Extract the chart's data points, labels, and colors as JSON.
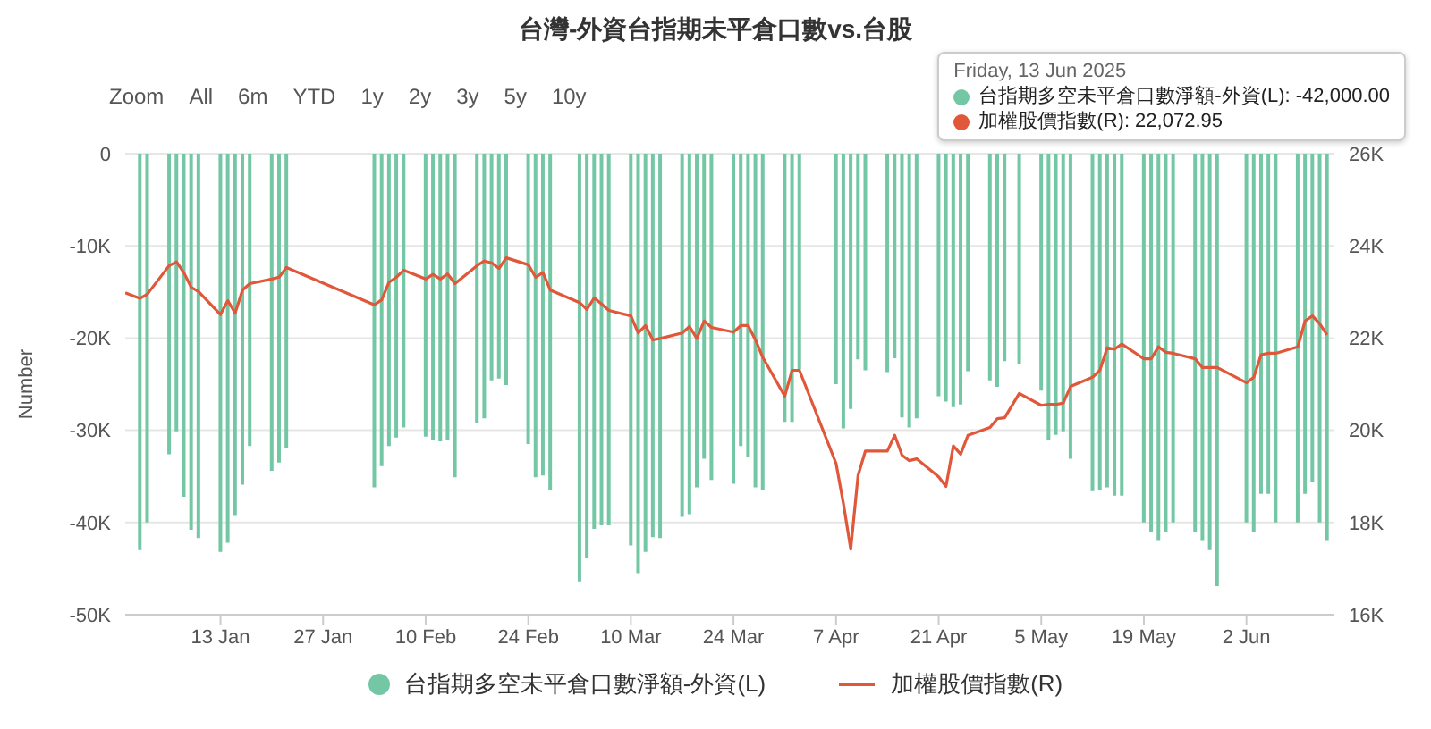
{
  "chart_data": {
    "type": "bar",
    "title": "台灣-外資台指期未平倉口數vs.台股",
    "ylabel": "Number",
    "x": [
      "2024-12-31",
      "2025-01-02",
      "2025-01-03",
      "2025-01-06",
      "2025-01-07",
      "2025-01-08",
      "2025-01-09",
      "2025-01-10",
      "2025-01-13",
      "2025-01-14",
      "2025-01-15",
      "2025-01-16",
      "2025-01-17",
      "2025-01-20",
      "2025-01-21",
      "2025-01-22",
      "2025-02-03",
      "2025-02-04",
      "2025-02-05",
      "2025-02-06",
      "2025-02-07",
      "2025-02-10",
      "2025-02-11",
      "2025-02-12",
      "2025-02-13",
      "2025-02-14",
      "2025-02-17",
      "2025-02-18",
      "2025-02-19",
      "2025-02-20",
      "2025-02-21",
      "2025-02-24",
      "2025-02-25",
      "2025-02-26",
      "2025-02-27",
      "2025-03-03",
      "2025-03-04",
      "2025-03-05",
      "2025-03-06",
      "2025-03-07",
      "2025-03-10",
      "2025-03-11",
      "2025-03-12",
      "2025-03-13",
      "2025-03-14",
      "2025-03-17",
      "2025-03-18",
      "2025-03-19",
      "2025-03-20",
      "2025-03-21",
      "2025-03-24",
      "2025-03-25",
      "2025-03-26",
      "2025-03-27",
      "2025-03-28",
      "2025-03-31",
      "2025-04-01",
      "2025-04-02",
      "2025-04-07",
      "2025-04-08",
      "2025-04-09",
      "2025-04-10",
      "2025-04-11",
      "2025-04-14",
      "2025-04-15",
      "2025-04-16",
      "2025-04-17",
      "2025-04-18",
      "2025-04-21",
      "2025-04-22",
      "2025-04-23",
      "2025-04-24",
      "2025-04-25",
      "2025-04-28",
      "2025-04-29",
      "2025-04-30",
      "2025-05-02",
      "2025-05-05",
      "2025-05-06",
      "2025-05-07",
      "2025-05-08",
      "2025-05-09",
      "2025-05-12",
      "2025-05-13",
      "2025-05-14",
      "2025-05-15",
      "2025-05-16",
      "2025-05-19",
      "2025-05-20",
      "2025-05-21",
      "2025-05-22",
      "2025-05-23",
      "2025-05-26",
      "2025-05-27",
      "2025-05-28",
      "2025-05-29",
      "2025-06-02",
      "2025-06-03",
      "2025-06-04",
      "2025-06-05",
      "2025-06-06",
      "2025-06-09",
      "2025-06-10",
      "2025-06-11",
      "2025-06-12",
      "2025-06-13"
    ],
    "series": [
      {
        "name": "台指期多空未平倉口數淨額-外資(L)",
        "color": "#74c7a4",
        "values": [
          null,
          -43000,
          -40000,
          -32600,
          -30100,
          -37200,
          -40800,
          -41700,
          -43200,
          -42200,
          -39300,
          -35900,
          -31700,
          -34400,
          -33500,
          -31900,
          -36200,
          -33900,
          -31700,
          -30800,
          -29700,
          -30700,
          -31100,
          -31200,
          -31100,
          -35100,
          -29200,
          -28700,
          -24600,
          -24400,
          -25100,
          -31500,
          -35100,
          -34900,
          -36500,
          -46400,
          -43900,
          -40700,
          -40300,
          -40300,
          -42500,
          -45500,
          -43200,
          -41600,
          -41700,
          -39400,
          -39100,
          -36200,
          -33100,
          -35400,
          -35800,
          -31700,
          -32900,
          -36200,
          -36500,
          -29100,
          -29100,
          -23400,
          -25000,
          -29800,
          -27700,
          -22300,
          -23500,
          -23700,
          -22200,
          -28600,
          -29700,
          -28700,
          -26300,
          -26900,
          -27500,
          -27200,
          -23600,
          -24600,
          -25300,
          -22500,
          -22800,
          -25700,
          -31000,
          -30500,
          -30100,
          -33100,
          -36600,
          -36500,
          -36200,
          -37100,
          -37100,
          -40000,
          -41000,
          -42000,
          -41000,
          -40000,
          -41000,
          -42000,
          -43000,
          -46900,
          -40000,
          -41000,
          -36900,
          -36900,
          -40000,
          -40000,
          -36900,
          -35600,
          -40000,
          -42000
        ]
      },
      {
        "name": "加權股價指數(R)",
        "type": "line",
        "axis": "y2",
        "color": "#e0573a",
        "values": [
          22980,
          22860,
          22950,
          23570,
          23650,
          23420,
          23100,
          23010,
          22510,
          22810,
          22540,
          23040,
          23180,
          23280,
          23320,
          23530,
          22720,
          22830,
          23210,
          23320,
          23470,
          23280,
          23380,
          23280,
          23390,
          23180,
          23570,
          23670,
          23630,
          23510,
          23740,
          23590,
          23320,
          23420,
          23040,
          22770,
          22620,
          22870,
          22740,
          22600,
          22480,
          22110,
          22270,
          21960,
          21990,
          22110,
          22250,
          21990,
          22370,
          22230,
          22130,
          22270,
          22270,
          21960,
          21580,
          20740,
          21300,
          21300,
          19280,
          18410,
          17420,
          19020,
          19550,
          19550,
          19890,
          19460,
          19340,
          19380,
          18990,
          18780,
          19660,
          19480,
          19890,
          20060,
          20250,
          20270,
          20800,
          20540,
          20560,
          20560,
          20590,
          20950,
          21150,
          21300,
          21790,
          21760,
          21870,
          21550,
          21550,
          21810,
          21690,
          21670,
          21550,
          21360,
          21360,
          21360,
          21030,
          21150,
          21640,
          21670,
          21670,
          21810,
          22370,
          22480,
          22310,
          22070
        ]
      }
    ],
    "xlim": [
      "2024-12-31",
      "2025-06-14"
    ],
    "xticks": [
      {
        "value": "2025-01-13",
        "label": "13 Jan"
      },
      {
        "value": "2025-01-27",
        "label": "27 Jan"
      },
      {
        "value": "2025-02-10",
        "label": "10 Feb"
      },
      {
        "value": "2025-02-24",
        "label": "24 Feb"
      },
      {
        "value": "2025-03-10",
        "label": "10 Mar"
      },
      {
        "value": "2025-03-24",
        "label": "24 Mar"
      },
      {
        "value": "2025-04-07",
        "label": "7 Apr"
      },
      {
        "value": "2025-04-21",
        "label": "21 Apr"
      },
      {
        "value": "2025-05-05",
        "label": "5 May"
      },
      {
        "value": "2025-05-19",
        "label": "19 May"
      },
      {
        "value": "2025-06-02",
        "label": "2 Jun"
      }
    ],
    "ylim": [
      -50000,
      0
    ],
    "yticks": [
      {
        "value": -50000,
        "label": "-50K"
      },
      {
        "value": -40000,
        "label": "-40K"
      },
      {
        "value": -30000,
        "label": "-30K"
      },
      {
        "value": -20000,
        "label": "-20K"
      },
      {
        "value": -10000,
        "label": "-10K"
      },
      0
    ],
    "y2lim": [
      16000,
      26000
    ],
    "y2ticks": [
      {
        "value": 16000,
        "label": "16K"
      },
      {
        "value": 18000,
        "label": "18K"
      },
      {
        "value": 20000,
        "label": "20K"
      },
      {
        "value": 22000,
        "label": "22K"
      },
      {
        "value": 24000,
        "label": "24K"
      },
      {
        "value": 26000,
        "label": "26K"
      }
    ],
    "grid": "y",
    "legend": "bottom",
    "annotations": [
      "Zoom",
      "All",
      "6m",
      "YTD",
      "1y",
      "2y",
      "3y",
      "5y",
      "10y",
      "Friday, 13 Jun 2025",
      "台指期多空未平倉口數淨額-外資(L): -42,000.00",
      "加權股價指數(R): 22,072.95"
    ]
  }
}
